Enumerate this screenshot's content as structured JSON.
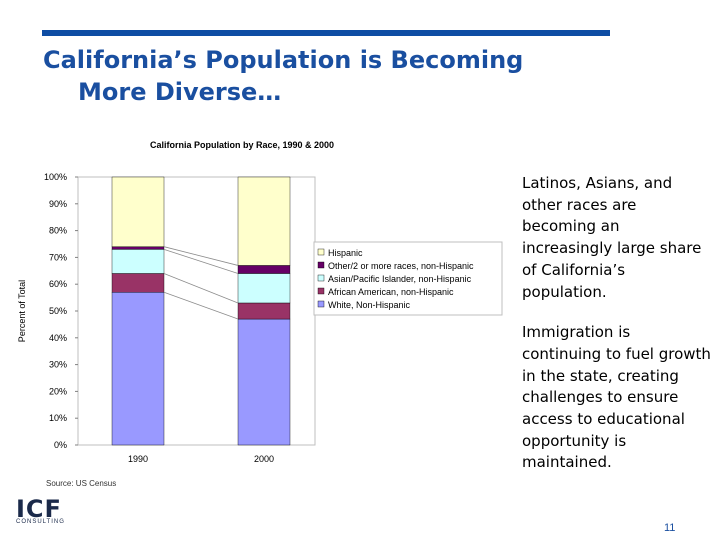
{
  "slide": {
    "title_line1": "California’s Population is Becoming",
    "title_line2": "More Diverse…",
    "bullets": [
      "Latinos, Asians, and other races are becoming an increasingly large share of California’s population.",
      "Immigration is continuing to fuel growth in the state, creating challenges to ensure access to educational opportunity is maintained."
    ],
    "source": "Source: US Census",
    "logo_text": "ICF",
    "logo_subtext": "CONSULTING",
    "page_number": "11",
    "accent_color": "#0e4da4"
  },
  "chart_data": {
    "type": "bar",
    "stacked": true,
    "title": "California Population by Race, 1990 & 2000",
    "xlabel": "",
    "ylabel": "Percent of Total",
    "ylim": [
      0,
      100
    ],
    "y_ticks": [
      "0%",
      "10%",
      "20%",
      "30%",
      "40%",
      "50%",
      "60%",
      "70%",
      "80%",
      "90%",
      "100%"
    ],
    "categories": [
      "1990",
      "2000"
    ],
    "series": [
      {
        "name": "White, Non-Hispanic",
        "values": [
          57,
          47
        ],
        "color": "#9999ff"
      },
      {
        "name": "African American, non-Hispanic",
        "values": [
          7,
          6
        ],
        "color": "#993366"
      },
      {
        "name": "Asian/Pacific Islander, non-Hispanic",
        "values": [
          9,
          11
        ],
        "color": "#ccffff"
      },
      {
        "name": "Other/2 or more races, non-Hispanic",
        "values": [
          1,
          3
        ],
        "color": "#660066"
      },
      {
        "name": "Hispanic",
        "values": [
          26,
          33
        ],
        "color": "#ffffcc"
      }
    ],
    "legend_order": [
      "Hispanic",
      "Other/2 or more races, non-Hispanic",
      "Asian/Pacific Islander, non-Hispanic",
      "African American, non-Hispanic",
      "White, Non-Hispanic"
    ],
    "legend_position": "right",
    "series_lines": true,
    "grid": false
  }
}
